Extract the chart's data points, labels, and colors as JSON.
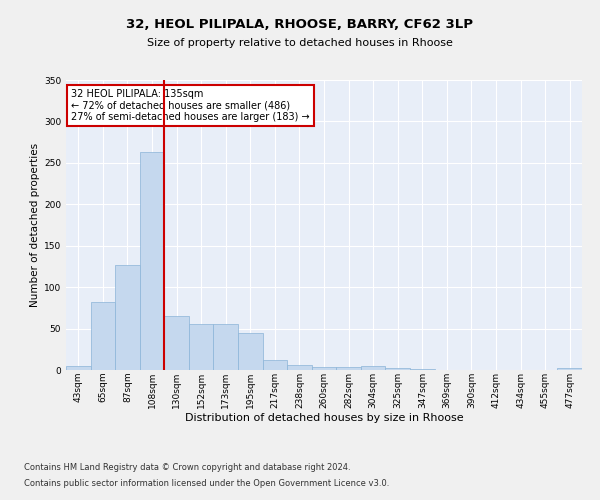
{
  "title_line1": "32, HEOL PILIPALA, RHOOSE, BARRY, CF62 3LP",
  "title_line2": "Size of property relative to detached houses in Rhoose",
  "xlabel": "Distribution of detached houses by size in Rhoose",
  "ylabel": "Number of detached properties",
  "bar_color": "#c5d8ee",
  "bar_edge_color": "#8ab4d8",
  "background_color": "#e8eef8",
  "fig_background_color": "#f0f0f0",
  "grid_color": "#ffffff",
  "vline_color": "#cc0000",
  "vline_bin_index": 4,
  "annotation_text": "32 HEOL PILIPALA: 135sqm\n← 72% of detached houses are smaller (486)\n27% of semi-detached houses are larger (183) →",
  "annotation_box_facecolor": "#ffffff",
  "annotation_box_edgecolor": "#cc0000",
  "categories": [
    "43sqm",
    "65sqm",
    "87sqm",
    "108sqm",
    "130sqm",
    "152sqm",
    "173sqm",
    "195sqm",
    "217sqm",
    "238sqm",
    "260sqm",
    "282sqm",
    "304sqm",
    "325sqm",
    "347sqm",
    "369sqm",
    "390sqm",
    "412sqm",
    "434sqm",
    "455sqm",
    "477sqm"
  ],
  "values": [
    5,
    82,
    127,
    263,
    65,
    56,
    55,
    45,
    12,
    6,
    4,
    4,
    5,
    2,
    1,
    0,
    0,
    0,
    0,
    0,
    3
  ],
  "ylim": [
    0,
    350
  ],
  "yticks": [
    0,
    50,
    100,
    150,
    200,
    250,
    300,
    350
  ],
  "footnote_line1": "Contains HM Land Registry data © Crown copyright and database right 2024.",
  "footnote_line2": "Contains public sector information licensed under the Open Government Licence v3.0.",
  "title1_fontsize": 9.5,
  "title2_fontsize": 8.0,
  "ylabel_fontsize": 7.5,
  "xlabel_fontsize": 8.0,
  "tick_fontsize": 6.5,
  "annotation_fontsize": 7.0,
  "footnote_fontsize": 6.0
}
